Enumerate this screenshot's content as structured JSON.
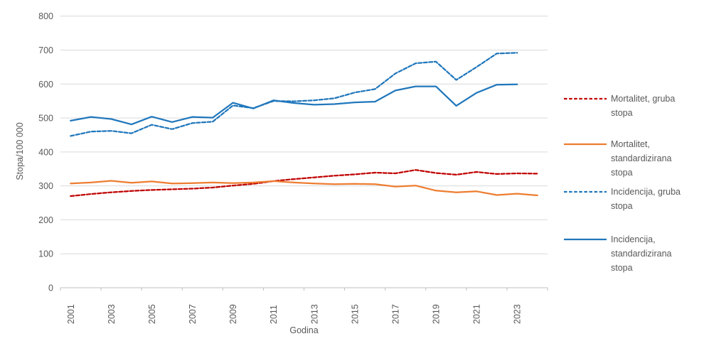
{
  "chart_data": {
    "type": "line",
    "title": "",
    "xlabel": "Godina",
    "ylabel": "Stopa/100 000",
    "x": [
      2001,
      2002,
      2003,
      2004,
      2005,
      2006,
      2007,
      2008,
      2009,
      2010,
      2011,
      2012,
      2013,
      2014,
      2015,
      2016,
      2017,
      2018,
      2019,
      2020,
      2021,
      2022,
      2023,
      2024
    ],
    "x_tick_labels": [
      "2001",
      "2003",
      "2005",
      "2007",
      "2009",
      "2011",
      "2013",
      "2015",
      "2017",
      "2019",
      "2021",
      "2023"
    ],
    "ylim": [
      0,
      800
    ],
    "y_ticks": [
      0,
      100,
      200,
      300,
      400,
      500,
      600,
      700,
      800
    ],
    "grid": "horizontal",
    "legend_position": "right",
    "series": [
      {
        "name": "Mortalitet, gruba stopa",
        "color": "#C00000",
        "style": "dashed",
        "values": [
          270,
          276,
          281,
          285,
          288,
          290,
          292,
          295,
          301,
          306,
          314,
          320,
          325,
          330,
          334,
          339,
          337,
          347,
          338,
          333,
          341,
          335,
          337,
          336
        ]
      },
      {
        "name": "Mortalitet, standardizirana stopa",
        "color": "#ED7D31",
        "style": "solid",
        "values": [
          307,
          310,
          315,
          309,
          313,
          307,
          308,
          310,
          308,
          310,
          314,
          310,
          307,
          305,
          306,
          305,
          298,
          301,
          286,
          281,
          284,
          273,
          277,
          272
        ]
      },
      {
        "name": "Incidencija, gruba stopa",
        "color": "#2077BC",
        "style": "dashed",
        "values": [
          447,
          460,
          462,
          455,
          480,
          467,
          485,
          489,
          537,
          529,
          550,
          549,
          552,
          558,
          575,
          585,
          631,
          661,
          666,
          612,
          650,
          690,
          692,
          null
        ]
      },
      {
        "name": "Incidencija, standardizirana stopa",
        "color": "#2077BC",
        "style": "solid",
        "values": [
          492,
          503,
          497,
          481,
          504,
          488,
          503,
          501,
          545,
          528,
          552,
          544,
          539,
          541,
          546,
          548,
          581,
          593,
          593,
          536,
          574,
          598,
          599,
          null
        ]
      }
    ],
    "colors": {
      "text": "#595959",
      "gridline": "#D9D9D9",
      "axis_line": "#BFBFBF"
    }
  }
}
